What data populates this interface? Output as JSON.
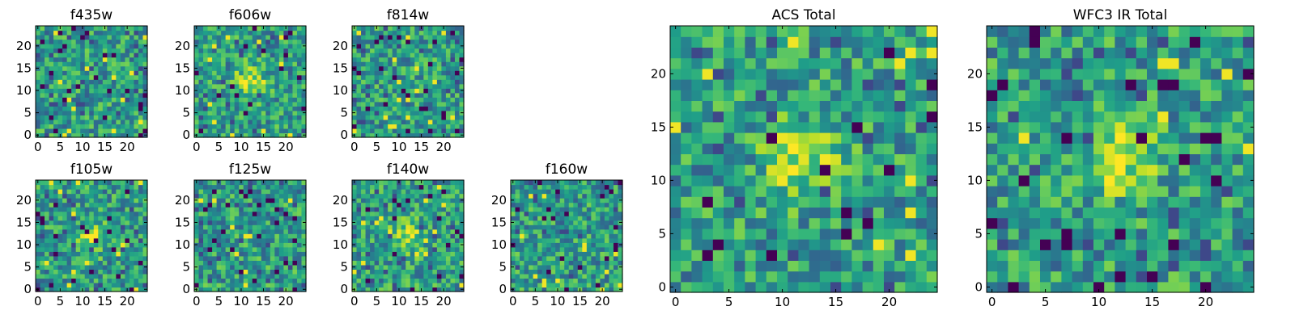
{
  "chart_data": [
    {
      "type": "heatmap",
      "title": "f435w",
      "x_ticks": [
        "0",
        "5",
        "10",
        "15",
        "20"
      ],
      "y_ticks": [
        "0",
        "5",
        "10",
        "15",
        "20"
      ],
      "xlim": [
        0,
        25
      ],
      "ylim": [
        0,
        25
      ],
      "grid": false,
      "colormap": "viridis"
    },
    {
      "type": "heatmap",
      "title": "f606w",
      "x_ticks": [
        "0",
        "5",
        "10",
        "15",
        "20"
      ],
      "y_ticks": [
        "0",
        "5",
        "10",
        "15",
        "20"
      ],
      "xlim": [
        0,
        25
      ],
      "ylim": [
        0,
        25
      ],
      "grid": false,
      "colormap": "viridis"
    },
    {
      "type": "heatmap",
      "title": "f814w",
      "x_ticks": [
        "0",
        "5",
        "10",
        "15",
        "20"
      ],
      "y_ticks": [
        "0",
        "5",
        "10",
        "15",
        "20"
      ],
      "xlim": [
        0,
        25
      ],
      "ylim": [
        0,
        25
      ],
      "grid": false,
      "colormap": "viridis"
    },
    {
      "type": "heatmap",
      "title": "f105w",
      "x_ticks": [
        "0",
        "5",
        "10",
        "15",
        "20"
      ],
      "y_ticks": [
        "0",
        "5",
        "10",
        "15",
        "20"
      ],
      "xlim": [
        0,
        25
      ],
      "ylim": [
        0,
        25
      ],
      "grid": false,
      "colormap": "viridis"
    },
    {
      "type": "heatmap",
      "title": "f125w",
      "x_ticks": [
        "0",
        "5",
        "10",
        "15",
        "20"
      ],
      "y_ticks": [
        "0",
        "5",
        "10",
        "15",
        "20"
      ],
      "xlim": [
        0,
        25
      ],
      "ylim": [
        0,
        25
      ],
      "grid": false,
      "colormap": "viridis"
    },
    {
      "type": "heatmap",
      "title": "f140w",
      "x_ticks": [
        "0",
        "5",
        "10",
        "15",
        "20"
      ],
      "y_ticks": [
        "0",
        "5",
        "10",
        "15",
        "20"
      ],
      "xlim": [
        0,
        25
      ],
      "ylim": [
        0,
        25
      ],
      "grid": false,
      "colormap": "viridis"
    },
    {
      "type": "heatmap",
      "title": "f160w",
      "x_ticks": [
        "0",
        "5",
        "10",
        "15",
        "20"
      ],
      "y_ticks": [
        "0",
        "5",
        "10",
        "15",
        "20"
      ],
      "xlim": [
        0,
        25
      ],
      "ylim": [
        0,
        25
      ],
      "grid": false,
      "colormap": "viridis"
    },
    {
      "type": "heatmap",
      "title": "ACS Total",
      "x_ticks": [
        "0",
        "5",
        "10",
        "15",
        "20"
      ],
      "y_ticks": [
        "0",
        "5",
        "10",
        "15",
        "20"
      ],
      "xlim": [
        0,
        25
      ],
      "ylim": [
        0,
        25
      ],
      "grid": false,
      "colormap": "viridis"
    },
    {
      "type": "heatmap",
      "title": "WFC3 IR Total",
      "x_ticks": [
        "0",
        "5",
        "10",
        "15",
        "20"
      ],
      "y_ticks": [
        "0",
        "5",
        "10",
        "15",
        "20"
      ],
      "xlim": [
        0,
        25
      ],
      "ylim": [
        0,
        25
      ],
      "grid": false,
      "colormap": "viridis"
    }
  ]
}
